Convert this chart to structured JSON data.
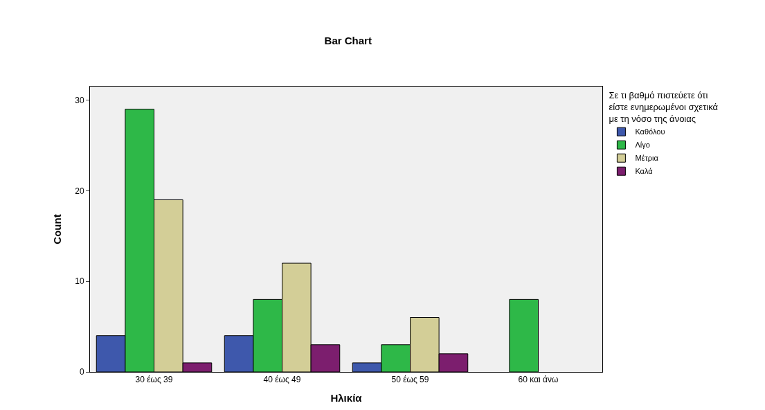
{
  "chart_data": {
    "type": "bar",
    "title": "Bar Chart",
    "xlabel": "Ηλικία",
    "ylabel": "Count",
    "legend_title": "Σε τι βαθμό πιστεύετε ότι είστε ενημερωμένοι σχετικά με τη νόσο της άνοιας",
    "categories": [
      "30 έως 39",
      "40 έως 49",
      "50 έως 59",
      "60 και άνω"
    ],
    "series": [
      {
        "name": "Καθόλου",
        "color": "#3e58ac",
        "values": [
          4,
          4,
          1,
          null
        ]
      },
      {
        "name": "Λίγο",
        "color": "#2eb848",
        "values": [
          29,
          8,
          3,
          8
        ]
      },
      {
        "name": "Μέτρια",
        "color": "#d3ce97",
        "values": [
          19,
          12,
          6,
          null
        ]
      },
      {
        "name": "Καλά",
        "color": "#7c1e6e",
        "values": [
          1,
          3,
          2,
          null
        ]
      }
    ],
    "ylim": [
      0,
      31.5
    ],
    "yticks": [
      0,
      10,
      20,
      30
    ],
    "grid": false,
    "legend": "top right"
  }
}
